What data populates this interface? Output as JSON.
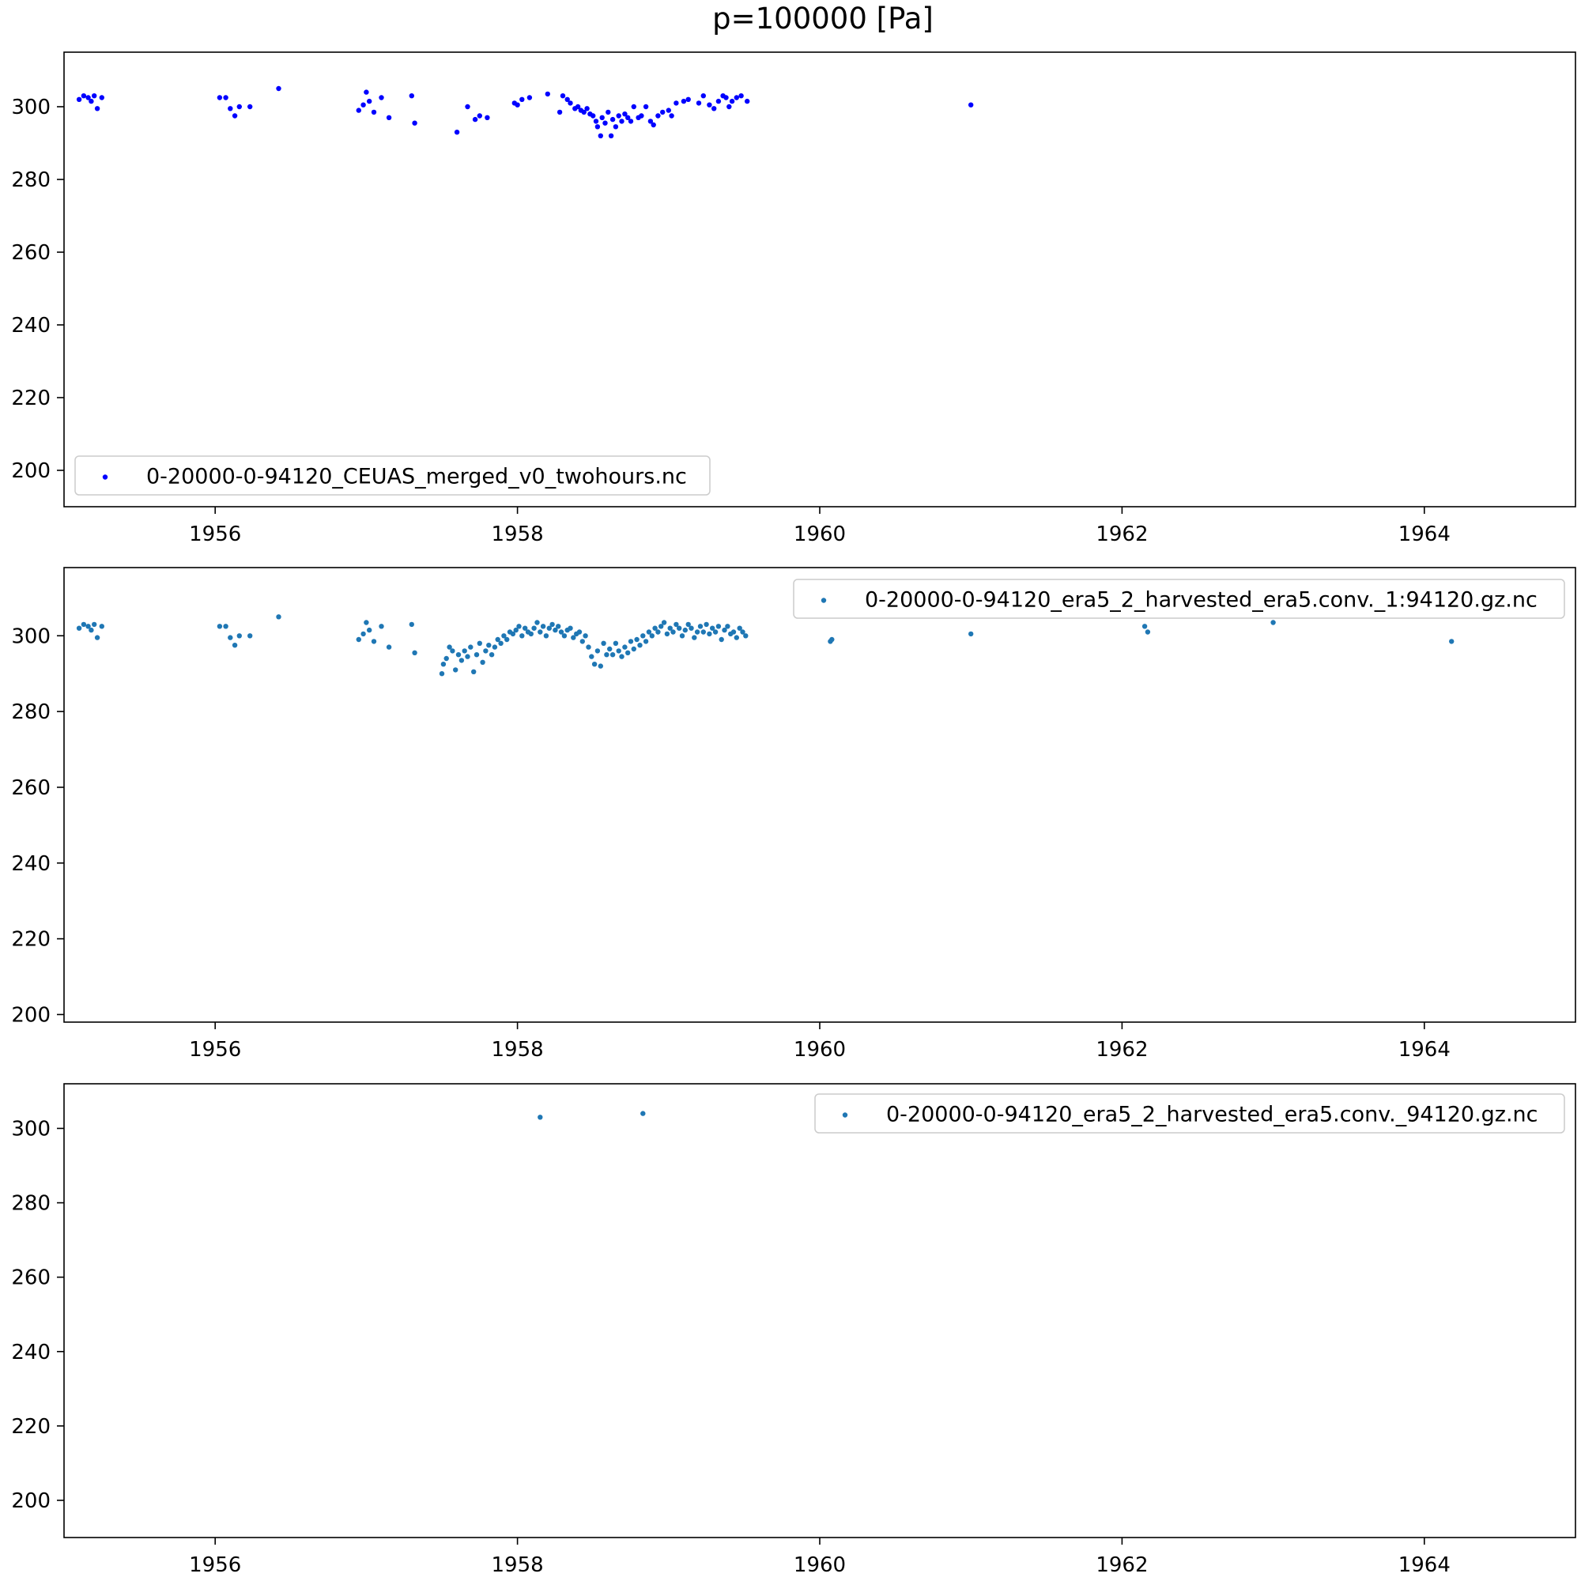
{
  "figure": {
    "title": "p=100000 [Pa]"
  },
  "chart_data": [
    {
      "type": "scatter",
      "title": "",
      "xlabel": "",
      "ylabel": "",
      "xlim": [
        1955.0,
        1965.0
      ],
      "ylim": [
        190,
        315
      ],
      "xticks": [
        1956,
        1958,
        1960,
        1962,
        1964
      ],
      "yticks": [
        200,
        220,
        240,
        260,
        280,
        300
      ],
      "legend_position": "lower-left",
      "series": [
        {
          "name": "0-20000-0-94120_CEUAS_merged_v0_twohours.nc",
          "color": "#0000ff",
          "points": [
            [
              1955.1,
              302
            ],
            [
              1955.13,
              303
            ],
            [
              1955.16,
              302.5
            ],
            [
              1955.18,
              301.5
            ],
            [
              1955.2,
              303
            ],
            [
              1955.22,
              299.5
            ],
            [
              1955.25,
              302.5
            ],
            [
              1956.03,
              302.5
            ],
            [
              1956.07,
              302.5
            ],
            [
              1956.1,
              299.5
            ],
            [
              1956.13,
              297.5
            ],
            [
              1956.16,
              300
            ],
            [
              1956.23,
              300
            ],
            [
              1956.42,
              305
            ],
            [
              1956.95,
              299
            ],
            [
              1956.98,
              300.5
            ],
            [
              1957.0,
              304
            ],
            [
              1957.02,
              301.5
            ],
            [
              1957.05,
              298.5
            ],
            [
              1957.1,
              302.5
            ],
            [
              1957.15,
              297
            ],
            [
              1957.3,
              303
            ],
            [
              1957.32,
              295.5
            ],
            [
              1957.6,
              293
            ],
            [
              1957.67,
              300
            ],
            [
              1957.72,
              296.5
            ],
            [
              1957.75,
              297.5
            ],
            [
              1957.8,
              297
            ],
            [
              1957.98,
              301
            ],
            [
              1958.0,
              300.5
            ],
            [
              1958.03,
              302
            ],
            [
              1958.08,
              302.5
            ],
            [
              1958.2,
              303.5
            ],
            [
              1958.28,
              298.5
            ],
            [
              1958.3,
              303
            ],
            [
              1958.33,
              302
            ],
            [
              1958.35,
              301
            ],
            [
              1958.38,
              299.5
            ],
            [
              1958.4,
              300
            ],
            [
              1958.42,
              299
            ],
            [
              1958.44,
              298.5
            ],
            [
              1958.46,
              299.5
            ],
            [
              1958.48,
              298
            ],
            [
              1958.5,
              297.5
            ],
            [
              1958.52,
              296
            ],
            [
              1958.53,
              294.5
            ],
            [
              1958.55,
              292
            ],
            [
              1958.56,
              297
            ],
            [
              1958.58,
              295.5
            ],
            [
              1958.6,
              298.5
            ],
            [
              1958.62,
              292
            ],
            [
              1958.63,
              296.5
            ],
            [
              1958.65,
              294.5
            ],
            [
              1958.67,
              297.5
            ],
            [
              1958.69,
              296
            ],
            [
              1958.71,
              298
            ],
            [
              1958.73,
              297
            ],
            [
              1958.75,
              296
            ],
            [
              1958.77,
              300
            ],
            [
              1958.8,
              297
            ],
            [
              1958.82,
              297.5
            ],
            [
              1958.85,
              300
            ],
            [
              1958.88,
              296
            ],
            [
              1958.9,
              295
            ],
            [
              1958.93,
              297.5
            ],
            [
              1958.96,
              298.5
            ],
            [
              1959.0,
              299
            ],
            [
              1959.02,
              297.5
            ],
            [
              1959.05,
              301
            ],
            [
              1959.1,
              301.5
            ],
            [
              1959.13,
              302
            ],
            [
              1959.2,
              301
            ],
            [
              1959.23,
              303
            ],
            [
              1959.27,
              300.5
            ],
            [
              1959.3,
              299.5
            ],
            [
              1959.33,
              301.5
            ],
            [
              1959.36,
              303
            ],
            [
              1959.38,
              302.5
            ],
            [
              1959.4,
              300
            ],
            [
              1959.42,
              301.5
            ],
            [
              1959.45,
              302.5
            ],
            [
              1959.48,
              303
            ],
            [
              1959.52,
              301.5
            ],
            [
              1961.0,
              300.5
            ]
          ]
        }
      ]
    },
    {
      "type": "scatter",
      "title": "",
      "xlabel": "",
      "ylabel": "",
      "xlim": [
        1955.0,
        1965.0
      ],
      "ylim": [
        198,
        318
      ],
      "xticks": [
        1956,
        1958,
        1960,
        1962,
        1964
      ],
      "yticks": [
        200,
        220,
        240,
        260,
        280,
        300
      ],
      "legend_position": "upper-right",
      "series": [
        {
          "name": "0-20000-0-94120_era5_2_harvested_era5.conv._1:94120.gz.nc",
          "color": "#1f77b4",
          "points": [
            [
              1955.1,
              302
            ],
            [
              1955.13,
              303
            ],
            [
              1955.16,
              302.5
            ],
            [
              1955.18,
              301.5
            ],
            [
              1955.2,
              303
            ],
            [
              1955.22,
              299.5
            ],
            [
              1955.25,
              302.5
            ],
            [
              1956.03,
              302.5
            ],
            [
              1956.07,
              302.5
            ],
            [
              1956.1,
              299.5
            ],
            [
              1956.13,
              297.5
            ],
            [
              1956.16,
              300
            ],
            [
              1956.23,
              300
            ],
            [
              1956.42,
              305
            ],
            [
              1956.95,
              299
            ],
            [
              1956.98,
              300.5
            ],
            [
              1957.0,
              303.5
            ],
            [
              1957.02,
              301.5
            ],
            [
              1957.05,
              298.5
            ],
            [
              1957.1,
              302.5
            ],
            [
              1957.15,
              297
            ],
            [
              1957.3,
              303
            ],
            [
              1957.32,
              295.5
            ],
            [
              1957.5,
              290
            ],
            [
              1957.51,
              292.5
            ],
            [
              1957.53,
              294
            ],
            [
              1957.55,
              297
            ],
            [
              1957.57,
              296
            ],
            [
              1957.59,
              291
            ],
            [
              1957.61,
              295
            ],
            [
              1957.63,
              293.5
            ],
            [
              1957.65,
              296
            ],
            [
              1957.67,
              294.5
            ],
            [
              1957.69,
              297
            ],
            [
              1957.71,
              290.5
            ],
            [
              1957.73,
              295
            ],
            [
              1957.75,
              298
            ],
            [
              1957.77,
              293
            ],
            [
              1957.79,
              296
            ],
            [
              1957.81,
              297.5
            ],
            [
              1957.83,
              295
            ],
            [
              1957.85,
              297
            ],
            [
              1957.87,
              299
            ],
            [
              1957.89,
              298
            ],
            [
              1957.91,
              300
            ],
            [
              1957.93,
              299
            ],
            [
              1957.95,
              301
            ],
            [
              1957.97,
              300.5
            ],
            [
              1957.99,
              301.5
            ],
            [
              1958.01,
              302.5
            ],
            [
              1958.03,
              300
            ],
            [
              1958.05,
              302
            ],
            [
              1958.07,
              301
            ],
            [
              1958.09,
              300.5
            ],
            [
              1958.11,
              302
            ],
            [
              1958.13,
              303.5
            ],
            [
              1958.15,
              301
            ],
            [
              1958.17,
              302.5
            ],
            [
              1958.19,
              300
            ],
            [
              1958.21,
              302
            ],
            [
              1958.23,
              303
            ],
            [
              1958.25,
              301.5
            ],
            [
              1958.27,
              302.5
            ],
            [
              1958.29,
              301
            ],
            [
              1958.31,
              300
            ],
            [
              1958.33,
              301.5
            ],
            [
              1958.35,
              302
            ],
            [
              1958.37,
              299.5
            ],
            [
              1958.39,
              300.5
            ],
            [
              1958.41,
              301
            ],
            [
              1958.43,
              298.5
            ],
            [
              1958.45,
              300
            ],
            [
              1958.47,
              297
            ],
            [
              1958.49,
              294.5
            ],
            [
              1958.51,
              292.5
            ],
            [
              1958.53,
              296
            ],
            [
              1958.55,
              292
            ],
            [
              1958.57,
              298
            ],
            [
              1958.59,
              295
            ],
            [
              1958.61,
              296.5
            ],
            [
              1958.63,
              295
            ],
            [
              1958.65,
              298
            ],
            [
              1958.67,
              296
            ],
            [
              1958.69,
              294.5
            ],
            [
              1958.71,
              297
            ],
            [
              1958.73,
              295.5
            ],
            [
              1958.75,
              298.5
            ],
            [
              1958.77,
              296.5
            ],
            [
              1958.79,
              299
            ],
            [
              1958.81,
              297.5
            ],
            [
              1958.83,
              300
            ],
            [
              1958.85,
              298.5
            ],
            [
              1958.87,
              301
            ],
            [
              1958.89,
              300
            ],
            [
              1958.91,
              302
            ],
            [
              1958.93,
              301
            ],
            [
              1958.95,
              302.5
            ],
            [
              1958.97,
              303.5
            ],
            [
              1958.99,
              300.5
            ],
            [
              1959.01,
              302
            ],
            [
              1959.03,
              301
            ],
            [
              1959.05,
              303
            ],
            [
              1959.07,
              302
            ],
            [
              1959.09,
              300
            ],
            [
              1959.11,
              301.5
            ],
            [
              1959.13,
              303
            ],
            [
              1959.15,
              302
            ],
            [
              1959.17,
              299.5
            ],
            [
              1959.19,
              301
            ],
            [
              1959.21,
              302.5
            ],
            [
              1959.23,
              301
            ],
            [
              1959.25,
              303
            ],
            [
              1959.27,
              300.5
            ],
            [
              1959.29,
              302
            ],
            [
              1959.31,
              301
            ],
            [
              1959.33,
              302.5
            ],
            [
              1959.35,
              299
            ],
            [
              1959.37,
              301.5
            ],
            [
              1959.39,
              302.5
            ],
            [
              1959.41,
              300.5
            ],
            [
              1959.43,
              301
            ],
            [
              1959.45,
              299.5
            ],
            [
              1959.47,
              302
            ],
            [
              1959.49,
              301
            ],
            [
              1959.51,
              300
            ],
            [
              1960.07,
              298.5
            ],
            [
              1960.08,
              299
            ],
            [
              1961.0,
              300.5
            ],
            [
              1962.15,
              302.5
            ],
            [
              1962.17,
              301
            ],
            [
              1963.0,
              303.5
            ],
            [
              1964.18,
              298.5
            ]
          ]
        }
      ]
    },
    {
      "type": "scatter",
      "title": "",
      "xlabel": "",
      "ylabel": "",
      "xlim": [
        1955.0,
        1965.0
      ],
      "ylim": [
        190,
        312
      ],
      "xticks": [
        1956,
        1958,
        1960,
        1962,
        1964
      ],
      "yticks": [
        200,
        220,
        240,
        260,
        280,
        300
      ],
      "legend_position": "upper-right",
      "series": [
        {
          "name": "0-20000-0-94120_era5_2_harvested_era5.conv._94120.gz.nc",
          "color": "#1f77b4",
          "points": [
            [
              1958.15,
              303
            ],
            [
              1958.83,
              304
            ]
          ]
        }
      ]
    }
  ]
}
